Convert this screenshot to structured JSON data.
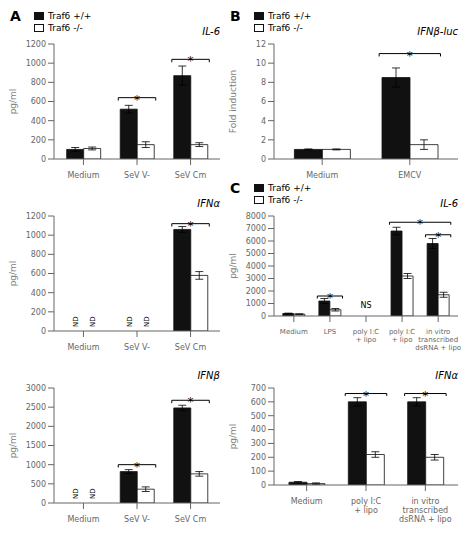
{
  "chart_data": [
    {
      "type": "bar",
      "title": "IL-6",
      "ylabel": "pg/ml",
      "categories": [
        "Medium",
        "SeV V-",
        "SeV Cm"
      ],
      "series": [
        {
          "name": "Traf6 +/+",
          "color": "#111111",
          "edge_color": "#111111",
          "values": [
            100,
            520,
            870
          ],
          "errors": [
            20,
            40,
            100
          ]
        },
        {
          "name": "Traf6 -/-",
          "color": "#ffffff",
          "edge_color": "#111111",
          "values": [
            110,
            150,
            150
          ],
          "errors": [
            15,
            30,
            20
          ]
        }
      ],
      "ylim": [
        0,
        1200
      ],
      "yticks": [
        0,
        200,
        400,
        600,
        800,
        1000,
        1200
      ],
      "grid": false,
      "legend": "upper left",
      "annotations": [
        {
          "type": "panel_label",
          "text": "A"
        },
        {
          "type": "bracket",
          "text": "*",
          "x1": 0.65,
          "x2": 1.35,
          "y": 640
        },
        {
          "type": "bracket",
          "text": "*",
          "x1": 1.65,
          "x2": 2.35,
          "y": 1040
        }
      ]
    },
    {
      "type": "bar",
      "title": "IFNα",
      "ylabel": "pg/ml",
      "categories": [
        "Medium",
        "SeV V-",
        "SeV Cm"
      ],
      "series": [
        {
          "name": "Traf6 +/+",
          "color": "#111111",
          "edge_color": "#111111",
          "values": [
            0,
            0,
            1060
          ],
          "errors": [
            0,
            0,
            30
          ]
        },
        {
          "name": "Traf6 -/-",
          "color": "#ffffff",
          "edge_color": "#111111",
          "values": [
            0,
            0,
            580
          ],
          "errors": [
            0,
            0,
            40
          ]
        }
      ],
      "ylim": [
        0,
        1200
      ],
      "yticks": [
        0,
        200,
        400,
        600,
        800,
        1000,
        1200
      ],
      "grid": false,
      "annotations": [
        {
          "type": "bracket",
          "text": "*",
          "x1": 1.65,
          "x2": 2.35,
          "y": 1120
        },
        {
          "type": "nd",
          "text": "ND",
          "series": 0,
          "category": 0
        },
        {
          "type": "nd",
          "text": "ND",
          "series": 0,
          "category": 1
        },
        {
          "type": "nd",
          "text": "ND",
          "series": 1,
          "category": 0
        },
        {
          "type": "nd",
          "text": "ND",
          "series": 1,
          "category": 1
        }
      ]
    },
    {
      "type": "bar",
      "title": "IFNβ",
      "ylabel": "pg/ml",
      "categories": [
        "Medium",
        "SeV V-",
        "SeV Cm"
      ],
      "series": [
        {
          "name": "Traf6 +/+",
          "color": "#111111",
          "edge_color": "#111111",
          "values": [
            0,
            820,
            2480
          ],
          "errors": [
            0,
            50,
            70
          ]
        },
        {
          "name": "Traf6 -/-",
          "color": "#ffffff",
          "edge_color": "#111111",
          "values": [
            0,
            360,
            760
          ],
          "errors": [
            0,
            60,
            60
          ]
        }
      ],
      "ylim": [
        0,
        3000
      ],
      "yticks": [
        0,
        500,
        1000,
        1500,
        2000,
        2500,
        3000
      ],
      "grid": false,
      "annotations": [
        {
          "type": "bracket",
          "text": "*",
          "x1": 0.65,
          "x2": 1.35,
          "y": 1000
        },
        {
          "type": "bracket",
          "text": "*",
          "x1": 1.65,
          "x2": 2.35,
          "y": 2680
        },
        {
          "type": "nd",
          "text": "ND",
          "series": 0,
          "category": 0
        },
        {
          "type": "nd",
          "text": "ND",
          "series": 1,
          "category": 0
        }
      ]
    },
    {
      "type": "bar",
      "title": "IFNβ-luc",
      "ylabel": "Fold induction",
      "categories": [
        "Medium",
        "EMCV"
      ],
      "series": [
        {
          "name": "Traf6 +/+",
          "color": "#111111",
          "edge_color": "#111111",
          "values": [
            1.0,
            8.5
          ],
          "errors": [
            0.05,
            1.0
          ]
        },
        {
          "name": "Traf6 -/-",
          "color": "#ffffff",
          "edge_color": "#111111",
          "values": [
            1.0,
            1.5
          ],
          "errors": [
            0.05,
            0.5
          ]
        }
      ],
      "ylim": [
        0,
        12
      ],
      "yticks": [
        0,
        2,
        4,
        6,
        8,
        10,
        12
      ],
      "grid": false,
      "legend": "upper left",
      "annotations": [
        {
          "type": "panel_label",
          "text": "B"
        },
        {
          "type": "bracket",
          "text": "*",
          "x1": 0.65,
          "x2": 1.35,
          "y": 11.0
        }
      ]
    },
    {
      "type": "bar",
      "title": "IL-6",
      "ylabel": "pg/ml",
      "categories": [
        "Medium",
        "LPS",
        "poly I:C\n+ lipo",
        "poly I:C\n+ lipo",
        "in vitro\ntranscribed\ndsRNA + lipo"
      ],
      "series": [
        {
          "name": "Traf6 +/+",
          "color": "#111111",
          "edge_color": "#111111",
          "values": [
            200,
            1200,
            0,
            6800,
            5800
          ],
          "errors": [
            30,
            200,
            0,
            300,
            400
          ]
        },
        {
          "name": "Traf6 -/-",
          "color": "#ffffff",
          "edge_color": "#111111",
          "values": [
            150,
            500,
            0,
            3200,
            1700
          ],
          "errors": [
            20,
            100,
            0,
            200,
            200
          ]
        }
      ],
      "ylim": [
        0,
        8000
      ],
      "yticks": [
        0,
        1000,
        2000,
        3000,
        4000,
        5000,
        6000,
        7000,
        8000
      ],
      "grid": false,
      "legend": "upper left",
      "annotations": [
        {
          "type": "panel_label",
          "text": "C"
        },
        {
          "type": "bracket",
          "text": "*",
          "x1": 0.65,
          "x2": 1.35,
          "y": 1600
        },
        {
          "type": "bracket",
          "text": "*",
          "x1": 2.65,
          "x2": 4.35,
          "y": 7500
        },
        {
          "type": "bracket",
          "text": "*",
          "x1": 3.65,
          "x2": 4.35,
          "y": 6500
        },
        {
          "type": "text",
          "text": "NS",
          "x": 2.0,
          "y": 500
        }
      ]
    },
    {
      "type": "bar",
      "title": "IFNα",
      "ylabel": "pg/ml",
      "categories": [
        "Medium",
        "poly I:C\n+ lipo",
        "in vitro\ntranscribed\ndsRNA + lipo"
      ],
      "series": [
        {
          "name": "Traf6 +/+",
          "color": "#111111",
          "edge_color": "#111111",
          "values": [
            20,
            600,
            600
          ],
          "errors": [
            5,
            30,
            30
          ]
        },
        {
          "name": "Traf6 -/-",
          "color": "#ffffff",
          "edge_color": "#111111",
          "values": [
            10,
            220,
            200
          ],
          "errors": [
            5,
            20,
            20
          ]
        }
      ],
      "ylim": [
        0,
        700
      ],
      "yticks": [
        0,
        100,
        200,
        300,
        400,
        500,
        600,
        700
      ],
      "grid": false,
      "annotations": [
        {
          "type": "bracket",
          "text": "*",
          "x1": 0.65,
          "x2": 1.35,
          "y": 660
        },
        {
          "type": "bracket",
          "text": "*",
          "x1": 1.65,
          "x2": 2.35,
          "y": 660
        }
      ]
    }
  ]
}
